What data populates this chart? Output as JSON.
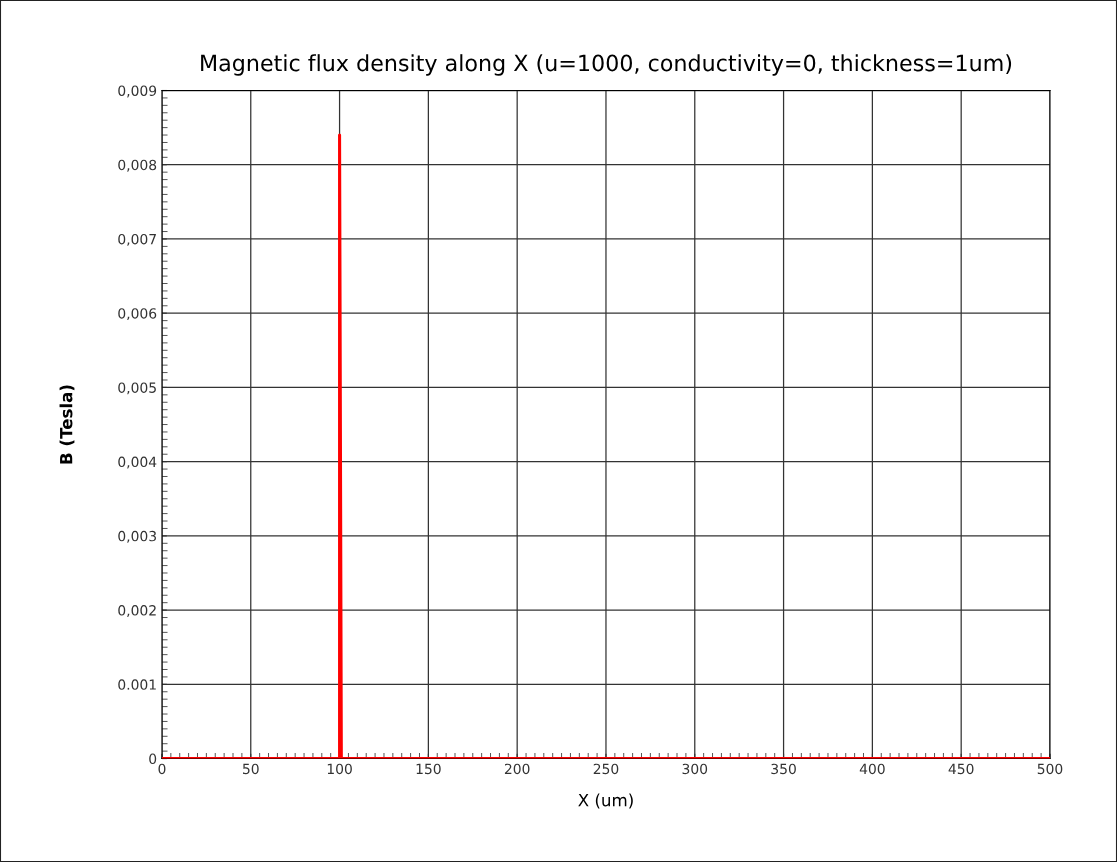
{
  "chart_data": {
    "type": "line",
    "title": "Magnetic flux density along X (u=1000, conductivity=0, thickness=1um)",
    "xlabel": "X (um)",
    "ylabel": "B (Tesla)",
    "x": [
      0,
      100,
      100,
      101,
      500
    ],
    "series": [
      {
        "color": "#ff0000",
        "values": [
          0,
          0,
          0.0084,
          0,
          0
        ]
      }
    ],
    "xlim": [
      0,
      500
    ],
    "xticks": [
      0,
      50,
      100,
      150,
      200,
      250,
      300,
      350,
      400,
      450,
      500
    ],
    "ylim": [
      0,
      0.009
    ],
    "yticks": [
      {
        "value": 0,
        "label": "0"
      },
      {
        "value": 0.001,
        "label": "0.001"
      },
      {
        "value": 0.002,
        "label": "0,002"
      },
      {
        "value": 0.003,
        "label": "0,003"
      },
      {
        "value": 0.004,
        "label": "0,004"
      },
      {
        "value": 0.005,
        "label": "0,005"
      },
      {
        "value": 0.006,
        "label": "0,006"
      },
      {
        "value": 0.007,
        "label": "0,007"
      },
      {
        "value": 0.008,
        "label": "0,008"
      },
      {
        "value": 0.009,
        "label": "0,009"
      }
    ],
    "grid": true,
    "legend": false,
    "marker": "none",
    "line_style": "solid"
  }
}
